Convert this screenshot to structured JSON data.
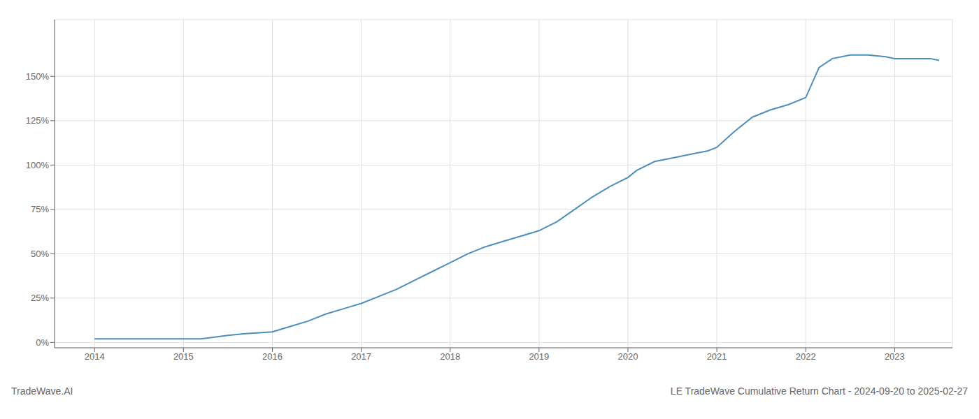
{
  "chart_data": {
    "type": "line",
    "title": "LE TradeWave Cumulative Return Chart - 2024-09-20 to 2025-02-27",
    "annotations": [
      "TradeWave.AI"
    ],
    "color": "#4d8fbc",
    "grid": true,
    "x": [
      2014.0,
      2014.2,
      2014.5,
      2014.8,
      2015.0,
      2015.2,
      2015.5,
      2015.7,
      2016.0,
      2016.2,
      2016.4,
      2016.6,
      2016.8,
      2017.0,
      2017.2,
      2017.4,
      2017.6,
      2017.8,
      2018.0,
      2018.2,
      2018.4,
      2018.6,
      2018.8,
      2019.0,
      2019.2,
      2019.4,
      2019.6,
      2019.8,
      2020.0,
      2020.1,
      2020.3,
      2020.5,
      2020.7,
      2020.9,
      2021.0,
      2021.2,
      2021.4,
      2021.6,
      2021.8,
      2022.0,
      2022.15,
      2022.3,
      2022.5,
      2022.7,
      2022.9,
      2023.0,
      2023.2,
      2023.4,
      2023.5
    ],
    "values": [
      0.02,
      0.02,
      0.02,
      0.02,
      0.02,
      0.02,
      0.04,
      0.05,
      0.06,
      0.09,
      0.12,
      0.16,
      0.19,
      0.22,
      0.26,
      0.3,
      0.35,
      0.4,
      0.45,
      0.5,
      0.54,
      0.57,
      0.6,
      0.63,
      0.68,
      0.75,
      0.82,
      0.88,
      0.93,
      0.97,
      1.02,
      1.04,
      1.06,
      1.08,
      1.1,
      1.19,
      1.27,
      1.31,
      1.34,
      1.38,
      1.55,
      1.6,
      1.62,
      1.62,
      1.61,
      1.6,
      1.6,
      1.6,
      1.59
    ],
    "xlim": [
      2013.55,
      2023.65
    ],
    "xticks": [
      2014,
      2015,
      2016,
      2017,
      2018,
      2019,
      2020,
      2021,
      2022,
      2023
    ],
    "ylim": [
      -0.03,
      1.82
    ],
    "yticks": [
      {
        "value": 0.0,
        "label": "0%"
      },
      {
        "value": 0.25,
        "label": "25%"
      },
      {
        "value": 0.5,
        "label": "50%"
      },
      {
        "value": 0.75,
        "label": "75%"
      },
      {
        "value": 1.0,
        "label": "100%"
      },
      {
        "value": 1.25,
        "label": "125%"
      },
      {
        "value": 1.5,
        "label": "150%"
      }
    ]
  }
}
